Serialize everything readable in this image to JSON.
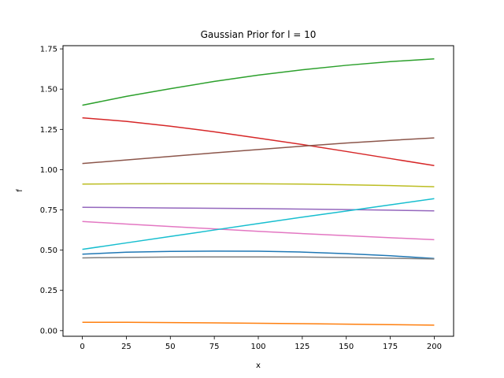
{
  "chart_data": {
    "type": "line",
    "title": "Gaussian Prior for l = 10",
    "xlabel": "x",
    "ylabel": "f",
    "xlim": [
      -11,
      211
    ],
    "ylim": [
      -0.035,
      1.77
    ],
    "xticks": [
      0,
      25,
      50,
      75,
      100,
      125,
      150,
      175,
      200
    ],
    "yticks": [
      0.0,
      0.25,
      0.5,
      0.75,
      1.0,
      1.25,
      1.5,
      1.75
    ],
    "xtick_labels": [
      "0",
      "25",
      "50",
      "75",
      "100",
      "125",
      "150",
      "175",
      "200"
    ],
    "ytick_labels": [
      "0.00",
      "0.25",
      "0.50",
      "0.75",
      "1.00",
      "1.25",
      "1.50",
      "1.75"
    ],
    "grid": false,
    "x": [
      0,
      25,
      50,
      75,
      100,
      125,
      150,
      175,
      200
    ],
    "series": [
      {
        "color": "#1f77b4",
        "values": [
          0.475,
          0.487,
          0.492,
          0.494,
          0.493,
          0.488,
          0.478,
          0.465,
          0.448
        ]
      },
      {
        "color": "#ff7f0e",
        "values": [
          0.052,
          0.052,
          0.05,
          0.048,
          0.046,
          0.043,
          0.04,
          0.037,
          0.034
        ]
      },
      {
        "color": "#2ca02c",
        "values": [
          1.4,
          1.455,
          1.503,
          1.548,
          1.587,
          1.62,
          1.648,
          1.671,
          1.688
        ]
      },
      {
        "color": "#d62728",
        "values": [
          1.322,
          1.3,
          1.27,
          1.235,
          1.196,
          1.156,
          1.113,
          1.069,
          1.025
        ]
      },
      {
        "color": "#9467bd",
        "values": [
          0.766,
          0.764,
          0.762,
          0.76,
          0.758,
          0.755,
          0.752,
          0.748,
          0.744
        ]
      },
      {
        "color": "#8c564b",
        "values": [
          1.038,
          1.06,
          1.082,
          1.104,
          1.125,
          1.146,
          1.165,
          1.182,
          1.197
        ]
      },
      {
        "color": "#e377c2",
        "values": [
          0.678,
          0.662,
          0.647,
          0.632,
          0.617,
          0.603,
          0.59,
          0.577,
          0.565
        ]
      },
      {
        "color": "#7f7f7f",
        "values": [
          0.452,
          0.455,
          0.457,
          0.458,
          0.458,
          0.457,
          0.454,
          0.45,
          0.445
        ]
      },
      {
        "color": "#bcbd22",
        "values": [
          0.91,
          0.912,
          0.913,
          0.913,
          0.912,
          0.91,
          0.906,
          0.901,
          0.894
        ]
      },
      {
        "color": "#17becf",
        "values": [
          0.505,
          0.545,
          0.585,
          0.625,
          0.665,
          0.705,
          0.743,
          0.781,
          0.82
        ]
      }
    ]
  }
}
